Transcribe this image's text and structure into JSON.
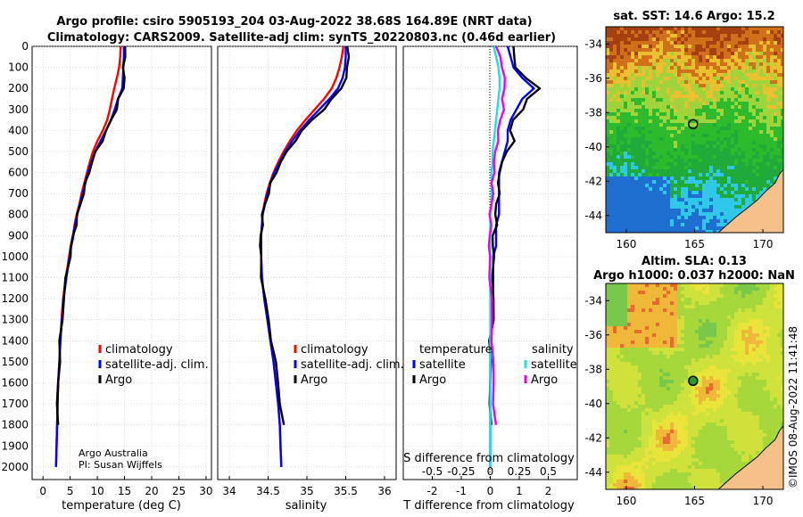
{
  "title": {
    "line1": "Argo profile: csiro 5905193_204 03-Aug-2022 38.68S 164.89E (NRT data)",
    "line2": "Climatology: CARS2009. Satellite-adj clim: synTS_20220803.nc (0.46d earlier)"
  },
  "credit": {
    "line1": "Argo Australia",
    "line2": "PI: Susan Wijffels"
  },
  "watermark": "©IMOS 08-Aug-2022 11:41:48",
  "colors": {
    "climatology": "#ff0000",
    "satellite": "#0000ff",
    "argo": "#000000",
    "sat_salinity": "#22e0e0",
    "argo_salinity": "#ee00ee"
  },
  "depth_axis": {
    "ticks": [
      "0",
      "100",
      "200",
      "300",
      "400",
      "500",
      "600",
      "700",
      "800",
      "900",
      "1000",
      "1100",
      "1200",
      "1300",
      "1400",
      "1500",
      "1600",
      "1700",
      "1800",
      "1900",
      "2000"
    ]
  },
  "chart_data": [
    {
      "type": "line",
      "xlabel": "temperature (deg C)",
      "ylabel": "",
      "xlim": [
        -2,
        31
      ],
      "ylim": [
        2060,
        0
      ],
      "xticks": [
        "0",
        "5",
        "10",
        "15",
        "20",
        "25",
        "30"
      ],
      "legend": [
        "climatology",
        "satellite-adj. clim.",
        "Argo"
      ],
      "depth": [
        0,
        50,
        100,
        150,
        200,
        250,
        300,
        350,
        400,
        450,
        500,
        550,
        600,
        650,
        700,
        750,
        800,
        850,
        900,
        950,
        1000,
        1100,
        1200,
        1300,
        1400,
        1500,
        1600,
        1700,
        1800,
        1900,
        2000
      ],
      "series": [
        {
          "name": "climatology",
          "values": [
            14.3,
            14.2,
            14.0,
            13.6,
            13.1,
            12.7,
            12.3,
            11.8,
            11.0,
            10.0,
            9.2,
            8.6,
            8.1,
            7.6,
            7.1,
            6.7,
            6.2,
            5.8,
            5.5,
            5.1,
            4.8,
            4.2,
            3.7,
            3.4,
            3.2,
            3.0,
            2.8,
            2.7,
            2.6,
            2.5,
            2.4
          ]
        },
        {
          "name": "satellite-adj. clim.",
          "values": [
            14.9,
            14.9,
            14.8,
            14.7,
            14.6,
            13.8,
            13.2,
            12.5,
            11.6,
            10.6,
            9.6,
            8.9,
            8.3,
            7.8,
            7.3,
            6.8,
            6.3,
            5.9,
            5.6,
            5.2,
            4.9,
            4.3,
            3.8,
            3.5,
            3.2,
            3.0,
            2.8,
            2.7,
            2.6,
            2.5,
            2.4
          ]
        },
        {
          "name": "Argo",
          "values": [
            15.1,
            15.0,
            14.9,
            14.9,
            14.8,
            14.0,
            13.4,
            12.6,
            11.7,
            10.8,
            9.8,
            9.0,
            8.4,
            7.9,
            7.4,
            6.9,
            6.4,
            6.0,
            5.6,
            5.2,
            4.9,
            4.3,
            3.8,
            3.5,
            3.2,
            3.0,
            2.8,
            2.7,
            2.6,
            null,
            null
          ]
        }
      ]
    },
    {
      "type": "line",
      "xlabel": "salinity",
      "ylabel": "",
      "xlim": [
        33.85,
        36.15
      ],
      "ylim": [
        2060,
        0
      ],
      "xticks": [
        "34",
        "34.5",
        "35",
        "35.5",
        "36"
      ],
      "legend": [
        "climatology",
        "satellite-adj. clim.",
        "Argo"
      ],
      "depth": [
        0,
        50,
        100,
        150,
        200,
        250,
        300,
        350,
        400,
        450,
        500,
        550,
        600,
        650,
        700,
        750,
        800,
        850,
        900,
        950,
        1000,
        1100,
        1200,
        1300,
        1400,
        1500,
        1600,
        1700,
        1800,
        1900,
        2000
      ],
      "series": [
        {
          "name": "climatology",
          "values": [
            35.47,
            35.45,
            35.42,
            35.38,
            35.32,
            35.22,
            35.1,
            34.98,
            34.87,
            34.78,
            34.7,
            34.63,
            34.57,
            34.52,
            34.48,
            34.45,
            34.43,
            34.42,
            34.41,
            34.41,
            34.41,
            34.42,
            34.45,
            34.49,
            34.53,
            34.57,
            34.6,
            34.63,
            34.65,
            34.66,
            34.67
          ]
        },
        {
          "name": "satellite-adj. clim.",
          "values": [
            35.5,
            35.5,
            35.49,
            35.46,
            35.4,
            35.29,
            35.16,
            35.03,
            34.91,
            34.81,
            34.72,
            34.65,
            34.58,
            34.53,
            34.49,
            34.46,
            34.43,
            34.42,
            34.41,
            34.41,
            34.41,
            34.42,
            34.45,
            34.49,
            34.53,
            34.57,
            34.6,
            34.63,
            34.65,
            34.66,
            34.67
          ]
        },
        {
          "name": "Argo",
          "values": [
            35.52,
            35.53,
            35.53,
            35.5,
            35.44,
            35.33,
            35.21,
            35.07,
            34.94,
            34.84,
            34.75,
            34.66,
            34.6,
            34.54,
            34.5,
            34.46,
            34.43,
            34.42,
            34.41,
            34.4,
            34.4,
            34.42,
            34.46,
            34.5,
            34.55,
            34.59,
            34.63,
            34.66,
            34.69,
            null,
            null
          ]
        }
      ]
    },
    {
      "type": "line",
      "xlabel": "T difference from climatology",
      "ylabel": "",
      "xlim": [
        -3,
        3
      ],
      "ylim": [
        2060,
        0
      ],
      "xticks": [
        "-2",
        "-1",
        "0",
        "1",
        "2"
      ],
      "top_label": "S difference from climatology",
      "top_ticks": [
        "-0.5",
        "-0.25",
        "0",
        "0.25",
        "0.5"
      ],
      "top_xlim": [
        -0.75,
        0.75
      ],
      "legend_left_title": "temperature",
      "legend_right_title": "salinity",
      "legend_left": [
        "satellite",
        "Argo"
      ],
      "legend_right": [
        "satellite",
        "Argo"
      ],
      "depth": [
        0,
        50,
        100,
        150,
        200,
        250,
        300,
        350,
        400,
        450,
        500,
        550,
        600,
        650,
        700,
        750,
        800,
        850,
        900,
        950,
        1000,
        1100,
        1200,
        1300,
        1400,
        1500,
        1600,
        1700,
        1800,
        1900,
        2000
      ],
      "series": [
        {
          "name": "temperature satellite",
          "values": [
            0.6,
            0.7,
            0.8,
            1.1,
            1.5,
            1.1,
            0.9,
            0.7,
            0.6,
            0.6,
            0.5,
            0.4,
            0.3,
            0.3,
            0.3,
            0.3,
            0.3,
            0.2,
            0.2,
            0.2,
            0.1,
            0.1,
            0.1,
            0.1,
            0.0,
            0.0,
            0.0,
            0.0,
            0.0,
            0.0,
            0.0
          ]
        },
        {
          "name": "temperature Argo",
          "values": [
            0.8,
            0.8,
            0.9,
            1.2,
            1.7,
            1.3,
            1.1,
            0.8,
            0.7,
            0.8,
            0.6,
            0.4,
            0.3,
            0.3,
            0.3,
            0.2,
            0.2,
            0.2,
            0.1,
            0.1,
            0.1,
            0.1,
            0.1,
            0.1,
            0.0,
            0.0,
            0.0,
            0.0,
            0.0,
            null,
            null
          ]
        },
        {
          "name": "salinity satellite",
          "values": [
            0.03,
            0.05,
            0.07,
            0.08,
            0.08,
            0.07,
            0.06,
            0.05,
            0.04,
            0.03,
            0.02,
            0.02,
            0.01,
            0.01,
            0.01,
            0.01,
            0.0,
            0.0,
            0.0,
            0.0,
            0.0,
            0.0,
            0.0,
            0.0,
            0.0,
            0.0,
            0.0,
            0.0,
            0.0,
            0.0,
            0.0
          ]
        },
        {
          "name": "salinity Argo",
          "values": [
            0.05,
            0.08,
            0.11,
            0.12,
            0.12,
            0.11,
            0.11,
            0.09,
            0.07,
            0.06,
            0.05,
            0.03,
            0.03,
            0.02,
            0.02,
            0.01,
            0.0,
            0.0,
            0.0,
            -0.01,
            -0.01,
            0.0,
            0.01,
            0.01,
            0.02,
            0.02,
            0.03,
            0.03,
            0.04,
            null,
            null
          ]
        }
      ]
    },
    {
      "type": "heatmap",
      "title": "sat. SST: 14.6 Argo: 15.2",
      "xticks": [
        "160",
        "165",
        "170"
      ],
      "yticks": [
        "-34",
        "-36",
        "-38",
        "-40",
        "-42",
        "-44"
      ],
      "xlim": [
        158.5,
        171.5
      ],
      "ylim": [
        -45,
        -33
      ],
      "argo_lon": 164.89,
      "argo_lat": -38.68
    },
    {
      "type": "heatmap",
      "title_line1": "Altim. SLA: 0.13",
      "title_line2": "Argo h1000: 0.037 h2000: NaN",
      "xticks": [
        "160",
        "165",
        "170"
      ],
      "yticks": [
        "-34",
        "-36",
        "-38",
        "-40",
        "-42",
        "-44"
      ],
      "xlim": [
        158.5,
        171.5
      ],
      "ylim": [
        -45,
        -33
      ],
      "argo_lon": 164.89,
      "argo_lat": -38.68
    }
  ]
}
